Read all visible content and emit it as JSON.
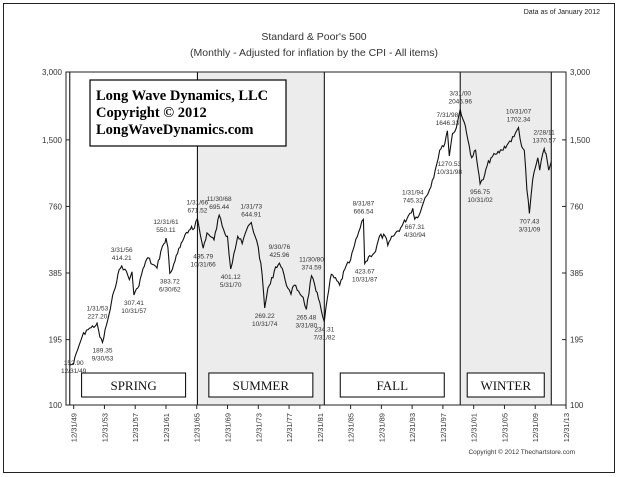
{
  "header": {
    "data_note": "Data as of January 2012"
  },
  "branding": {
    "lines": [
      "Long Wave Dynamics, LLC",
      "Copyright © 2012",
      "LongWaveDynamics.com"
    ]
  },
  "footer": {
    "copyright": "Copyright © 2012 Thechartstore.com"
  },
  "colors": {
    "line": "#111111",
    "shade": "#ececec",
    "axis": "#222222"
  },
  "chart_data": {
    "type": "line",
    "title": "Standard & Poor's 500",
    "subtitle": "(Monthly - Adjusted for inflation by the CPI - All items)",
    "y_scale": "log",
    "ylim": [
      100,
      3000
    ],
    "y_ticks": [
      {
        "value": 3000,
        "label": "3,000"
      },
      {
        "value": 1500,
        "label": "1,500"
      },
      {
        "value": 760,
        "label": "760"
      },
      {
        "value": 385,
        "label": "385"
      },
      {
        "value": 195,
        "label": "195"
      },
      {
        "value": 100,
        "label": "100"
      }
    ],
    "xlim": [
      "1949-01-01",
      "2013-12-31"
    ],
    "x_ticks": [
      "12/31/49",
      "12/31/53",
      "12/31/57",
      "12/31/61",
      "12/31/65",
      "12/31/69",
      "12/31/73",
      "12/31/77",
      "12/31/81",
      "12/31/85",
      "12/31/89",
      "12/31/93",
      "12/31/97",
      "12/31/01",
      "12/31/05",
      "12/31/09",
      "12/31/13"
    ],
    "seasons": [
      {
        "name": "SPRING",
        "start": "1949-06-30",
        "end": "1966-01-31",
        "shaded": false
      },
      {
        "name": "SUMMER",
        "start": "1966-01-31",
        "end": "1982-07-31",
        "shaded": true
      },
      {
        "name": "FALL",
        "start": "1982-07-31",
        "end": "2000-03-31",
        "shaded": false
      },
      {
        "name": "WINTER",
        "start": "2000-03-31",
        "end": "2012-01-31",
        "shaded": true
      }
    ],
    "annotations": [
      {
        "date": "12/31/49",
        "value": 152.9,
        "text": "152.90\n12/31/49"
      },
      {
        "date": "9/30/53",
        "value": 189.35,
        "text": "189.35\n9/30/53"
      },
      {
        "date": "1/31/53",
        "value": 227.2,
        "text": "1/31/53\n227.20"
      },
      {
        "date": "3/31/56",
        "value": 414.21,
        "text": "3/31/56\n414.21"
      },
      {
        "date": "10/31/57",
        "value": 307.41,
        "text": "307.41\n10/31/57"
      },
      {
        "date": "12/31/61",
        "value": 550.11,
        "text": "12/31/61\n550.11"
      },
      {
        "date": "6/30/62",
        "value": 383.72,
        "text": "383.72\n6/30/62"
      },
      {
        "date": "1/31/66",
        "value": 671.52,
        "text": "1/31/66\n671.52"
      },
      {
        "date": "10/31/66",
        "value": 495.79,
        "text": "495.79\n10/31/66"
      },
      {
        "date": "11/30/68",
        "value": 695.44,
        "text": "11/30/68\n695.44"
      },
      {
        "date": "5/31/70",
        "value": 401.12,
        "text": "401.12\n5/31/70"
      },
      {
        "date": "1/31/73",
        "value": 644.91,
        "text": "1/31/73\n644.91"
      },
      {
        "date": "10/31/74",
        "value": 269.22,
        "text": "269.22\n10/31/74"
      },
      {
        "date": "9/30/76",
        "value": 425.96,
        "text": "9/30/76\n425.96"
      },
      {
        "date": "3/31/80",
        "value": 265.48,
        "text": "265.48\n3/31/80"
      },
      {
        "date": "11/30/80",
        "value": 374.59,
        "text": "11/30/80\n374.59"
      },
      {
        "date": "7/31/82",
        "value": 234.31,
        "text": "234.31\n7/31/82"
      },
      {
        "date": "8/31/87",
        "value": 666.54,
        "text": "8/31/87\n666.54"
      },
      {
        "date": "10/31/87",
        "value": 423.67,
        "text": "423.67\n10/31/87"
      },
      {
        "date": "1/31/94",
        "value": 745.32,
        "text": "1/31/94\n745.32"
      },
      {
        "date": "4/30/94",
        "value": 667.31,
        "text": "667.31\n4/30/94"
      },
      {
        "date": "7/31/98",
        "value": 1646.33,
        "text": "7/31/98\n1646.33"
      },
      {
        "date": "10/31/98",
        "value": 1270.53,
        "text": "1270.53\n10/31/98"
      },
      {
        "date": "3/31/00",
        "value": 2046.96,
        "text": "3/31/00\n2046.96"
      },
      {
        "date": "10/31/02",
        "value": 956.75,
        "text": "956.75\n10/31/02"
      },
      {
        "date": "10/31/07",
        "value": 1702.34,
        "text": "10/31/07\n1702.34"
      },
      {
        "date": "3/31/09",
        "value": 707.43,
        "text": "707.43\n3/31/09"
      },
      {
        "date": "2/28/11",
        "value": 1370.57,
        "text": "2/28/11\n1370.57"
      }
    ],
    "series": [
      {
        "x": [
          "1949-06-30",
          "1949-12-31",
          "1950-06-30",
          "1951-01-31",
          "1951-08-31",
          "1952-03-31",
          "1952-12-31",
          "1953-01-31",
          "1953-05-31",
          "1953-09-30",
          "1954-03-31",
          "1954-09-30",
          "1955-03-31",
          "1955-09-30",
          "1956-03-31",
          "1956-08-31",
          "1957-03-31",
          "1957-07-31",
          "1957-10-31",
          "1958-04-30",
          "1958-10-31",
          "1959-04-30",
          "1959-08-31",
          "1960-03-31",
          "1960-10-31",
          "1961-04-30",
          "1961-09-30",
          "1961-12-31",
          "1962-03-31",
          "1962-06-30",
          "1962-10-31",
          "1963-04-30",
          "1963-10-31",
          "1964-04-30",
          "1964-10-31",
          "1965-04-30",
          "1965-06-30",
          "1966-01-31",
          "1966-06-30",
          "1966-10-31",
          "1967-04-30",
          "1967-09-30",
          "1968-03-31",
          "1968-11-30",
          "1969-06-30",
          "1969-12-31",
          "1970-05-31",
          "1970-10-31",
          "1971-04-30",
          "1971-11-30",
          "1972-06-30",
          "1973-01-31",
          "1973-07-31",
          "1973-12-31",
          "1974-06-30",
          "1974-10-31",
          "1975-03-31",
          "1975-07-31",
          "1976-03-31",
          "1976-09-30",
          "1977-04-30",
          "1977-10-31",
          "1978-03-31",
          "1978-08-31",
          "1979-03-31",
          "1979-10-31",
          "1980-03-31",
          "1980-11-30",
          "1981-06-30",
          "1981-12-31",
          "1982-07-31",
          "1982-12-31",
          "1983-06-30",
          "1984-07-31",
          "1985-03-31",
          "1985-12-31",
          "1986-06-30",
          "1987-03-31",
          "1987-08-31",
          "1987-10-31",
          "1988-06-30",
          "1989-03-31",
          "1989-09-30",
          "1990-06-30",
          "1990-10-31",
          "1991-06-30",
          "1992-06-30",
          "1993-06-30",
          "1994-01-31",
          "1994-04-30",
          "1995-01-31",
          "1995-08-31",
          "1996-03-31",
          "1996-12-31",
          "1997-07-31",
          "1998-01-31",
          "1998-07-31",
          "1998-10-31",
          "1999-03-31",
          "1999-09-30",
          "2000-03-31",
          "2000-09-30",
          "2001-03-31",
          "2001-09-30",
          "2002-03-31",
          "2002-07-31",
          "2002-10-31",
          "2003-03-31",
          "2003-09-30",
          "2004-03-31",
          "2004-12-31",
          "2005-08-31",
          "2006-06-30",
          "2007-03-31",
          "2007-10-31",
          "2008-03-31",
          "2008-07-31",
          "2008-11-30",
          "2009-03-31",
          "2009-08-31",
          "2010-04-30",
          "2010-07-31",
          "2011-02-28",
          "2011-05-31",
          "2011-09-30",
          "2012-01-31"
        ],
        "values": [
          150,
          152.9,
          175,
          200,
          215,
          220,
          228,
          227.2,
          200,
          189.35,
          225,
          265,
          320,
          380,
          414.21,
          400,
          360,
          390,
          307.41,
          330,
          380,
          430,
          450,
          420,
          405,
          480,
          520,
          550.11,
          500,
          383.72,
          400,
          460,
          500,
          550,
          580,
          620,
          600,
          671.52,
          560,
          495.79,
          580,
          560,
          540,
          695.44,
          600,
          560,
          401.12,
          470,
          560,
          520,
          600,
          644.91,
          560,
          500,
          380,
          269.22,
          330,
          345,
          410,
          425.96,
          380,
          330,
          310,
          340,
          320,
          300,
          265.48,
          374.59,
          320,
          285,
          234.31,
          300,
          380,
          340,
          400,
          440,
          510,
          610,
          666.54,
          423.67,
          460,
          480,
          560,
          560,
          510,
          560,
          610,
          690,
          745.32,
          667.31,
          720,
          830,
          900,
          1100,
          1350,
          1400,
          1646.33,
          1270.53,
          1600,
          1700,
          2046.96,
          1800,
          1500,
          1250,
          1350,
          1100,
          956.75,
          1000,
          1150,
          1250,
          1300,
          1350,
          1450,
          1550,
          1702.34,
          1400,
          1350,
          900,
          707.43,
          1000,
          1250,
          1100,
          1370.57,
          1300,
          1100,
          1200
        ]
      }
    ]
  }
}
